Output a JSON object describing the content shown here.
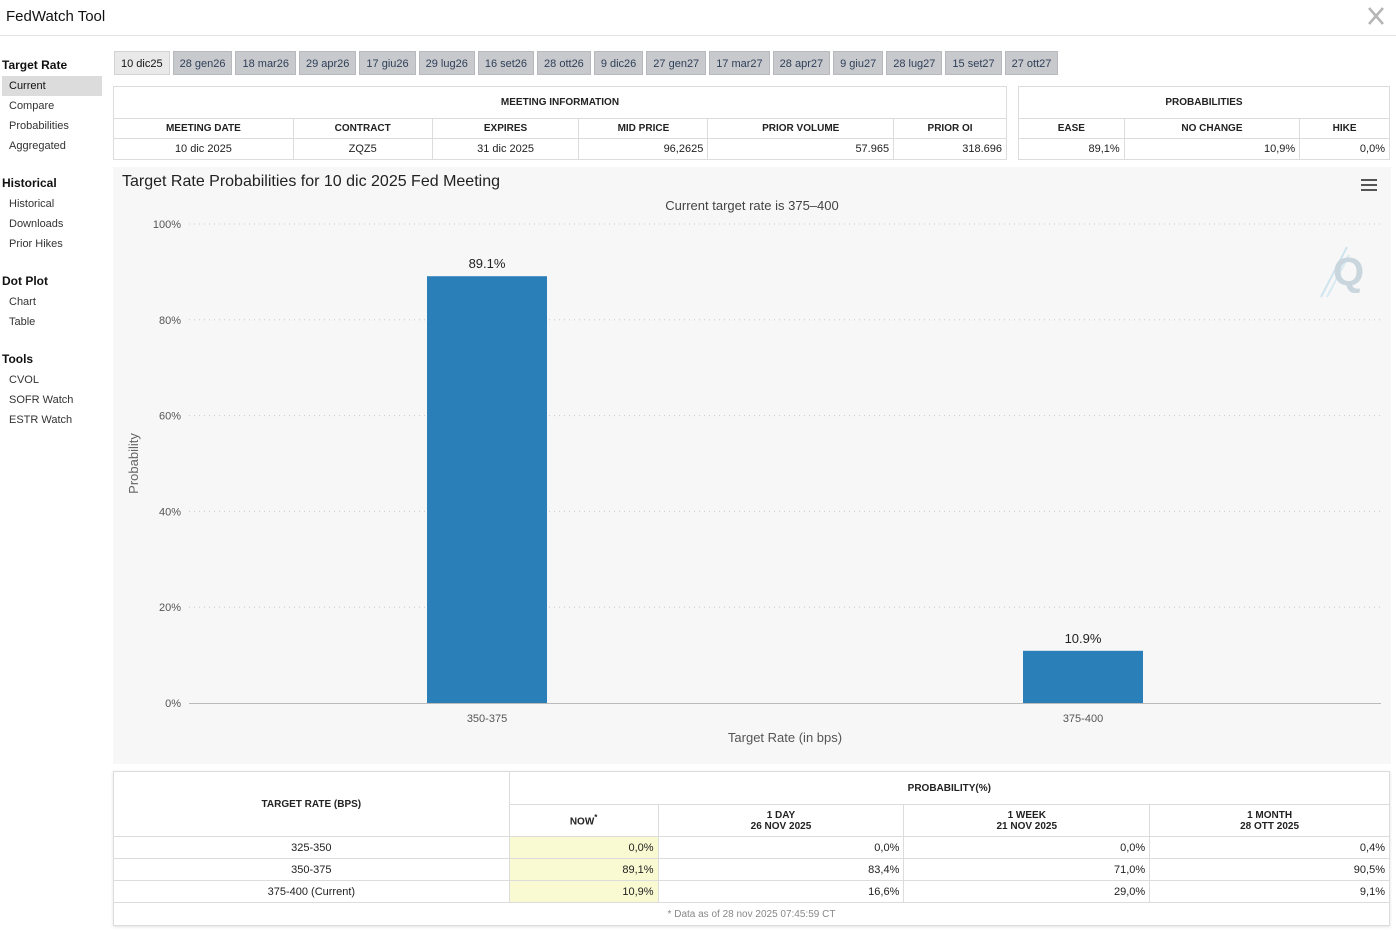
{
  "app": {
    "title": "FedWatch Tool"
  },
  "sidebar": {
    "sections": [
      {
        "title": "Target Rate",
        "items": [
          "Current",
          "Compare",
          "Probabilities",
          "Aggregated"
        ]
      },
      {
        "title": "Historical",
        "items": [
          "Historical",
          "Downloads",
          "Prior Hikes"
        ]
      },
      {
        "title": "Dot Plot",
        "items": [
          "Chart",
          "Table"
        ]
      },
      {
        "title": "Tools",
        "items": [
          "CVOL",
          "SOFR Watch",
          "ESTR Watch"
        ]
      }
    ],
    "active": "Current"
  },
  "tabs": [
    "10 dic25",
    "28 gen26",
    "18 mar26",
    "29 apr26",
    "17 giu26",
    "29 lug26",
    "16 set26",
    "28 ott26",
    "9 dic26",
    "27 gen27",
    "17 mar27",
    "28 apr27",
    "9 giu27",
    "28 lug27",
    "15 set27",
    "27 ott27"
  ],
  "meeting_info": {
    "header": "MEETING INFORMATION",
    "columns": [
      "MEETING DATE",
      "CONTRACT",
      "EXPIRES",
      "MID PRICE",
      "PRIOR VOLUME",
      "PRIOR OI"
    ],
    "values": [
      "10 dic 2025",
      "ZQZ5",
      "31 dic 2025",
      "96,2625",
      "57.965",
      "318.696"
    ]
  },
  "probabilities": {
    "header": "PROBABILITIES",
    "columns": [
      "EASE",
      "NO CHANGE",
      "HIKE"
    ],
    "values": [
      "89,1%",
      "10,9%",
      "0,0%"
    ]
  },
  "chart": {
    "title": "Target Rate Probabilities for 10 dic 2025 Fed Meeting",
    "menu_icon": "hamburger-menu-icon",
    "watermark_icon": "q-logo-icon",
    "bar_color": "#2b7fb8"
  },
  "chart_data": {
    "type": "bar",
    "title": "Target Rate Probabilities for 10 dic 2025 Fed Meeting",
    "subtitle": "Current target rate is 375–400",
    "categories": [
      "350-375",
      "375-400"
    ],
    "values": [
      89.1,
      10.9
    ],
    "data_labels": [
      "89.1%",
      "10.9%"
    ],
    "xlabel": "Target Rate (in bps)",
    "ylabel": "Probability",
    "ylim": [
      0,
      100
    ],
    "yticks": [
      "0%",
      "20%",
      "40%",
      "60%",
      "80%",
      "100%"
    ],
    "grid": true
  },
  "rate_table": {
    "target_header": "TARGET RATE (BPS)",
    "prob_header": "PROBABILITY(%)",
    "columns": [
      {
        "label": "NOW",
        "sup": "*",
        "sub": ""
      },
      {
        "label": "1 DAY",
        "sup": "",
        "sub": "26 NOV 2025"
      },
      {
        "label": "1 WEEK",
        "sup": "",
        "sub": "21 NOV 2025"
      },
      {
        "label": "1 MONTH",
        "sup": "",
        "sub": "28 OTT 2025"
      }
    ],
    "rows": [
      {
        "rate": "325-350",
        "values": [
          "0,0%",
          "0,0%",
          "0,0%",
          "0,4%"
        ]
      },
      {
        "rate": "350-375",
        "values": [
          "89,1%",
          "83,4%",
          "71,0%",
          "90,5%"
        ]
      },
      {
        "rate": "375-400 (Current)",
        "values": [
          "10,9%",
          "16,6%",
          "29,0%",
          "9,1%"
        ]
      }
    ],
    "footnote": "* Data as of 28 nov 2025 07:45:59 CT"
  }
}
